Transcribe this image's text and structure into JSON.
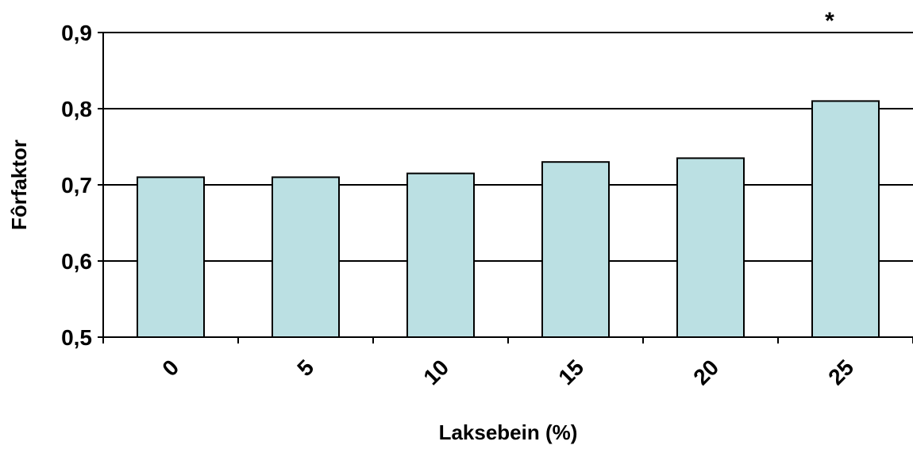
{
  "chart_data": {
    "type": "bar",
    "categories": [
      "0",
      "5",
      "10",
      "15",
      "20",
      "25"
    ],
    "values": [
      0.71,
      0.71,
      0.715,
      0.73,
      0.735,
      0.81
    ],
    "title": "",
    "xlabel": "Laksebein (%)",
    "ylabel": "Fôrfaktor",
    "ylim": [
      0.5,
      0.9
    ],
    "yticks": [
      "0,5",
      "0,6",
      "0,7",
      "0,8",
      "0,9"
    ],
    "grid": true,
    "legend": "none",
    "annotations": [
      {
        "category": "25",
        "text": "*"
      }
    ],
    "colors": {
      "bar_fill": "#BBE0E3",
      "bar_stroke": "#000000",
      "grid": "#000000"
    }
  }
}
